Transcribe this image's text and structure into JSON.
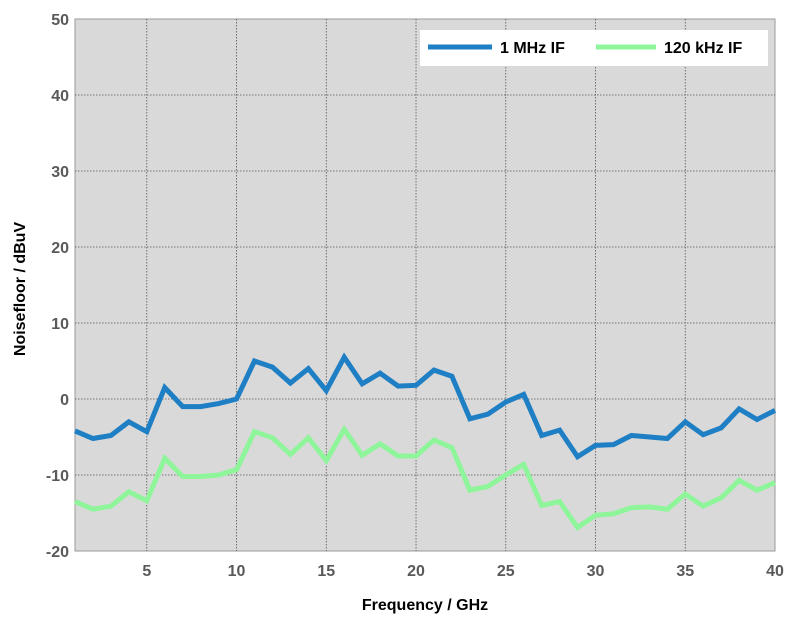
{
  "chart_data": {
    "type": "line",
    "title": "",
    "xlabel": "Frequency / GHz",
    "ylabel": "Noisefloor / dBuV",
    "xlim": [
      1,
      40
    ],
    "ylim": [
      -20,
      50
    ],
    "xticks": [
      5,
      10,
      15,
      20,
      25,
      30,
      35,
      40
    ],
    "yticks": [
      -20,
      -10,
      0,
      10,
      20,
      30,
      40,
      50
    ],
    "grid": true,
    "legend_position": "top-right",
    "background": "#d9d9d9",
    "x": [
      1,
      2,
      3,
      4,
      5,
      6,
      7,
      8,
      9,
      10,
      11,
      12,
      13,
      14,
      15,
      16,
      17,
      18,
      19,
      20,
      21,
      22,
      23,
      24,
      25,
      26,
      27,
      28,
      29,
      30,
      31,
      32,
      33,
      34,
      35,
      36,
      37,
      38,
      39,
      40
    ],
    "series": [
      {
        "name": "1 MHz IF",
        "color": "#1f7fc4",
        "values": [
          -4.2,
          -5.2,
          -4.8,
          -3,
          -4.3,
          1.5,
          -1,
          -1,
          -0.6,
          0,
          5,
          4.2,
          2.1,
          4,
          1.1,
          5.5,
          2,
          3.4,
          1.7,
          1.8,
          3.8,
          3,
          -2.6,
          -2,
          -0.4,
          0.6,
          -4.8,
          -4.1,
          -7.6,
          -6.1,
          -6,
          -4.8,
          -5,
          -5.2,
          -3,
          -4.7,
          -3.8,
          -1.3,
          -2.7,
          -1.5
        ]
      },
      {
        "name": "120 kHz IF",
        "color": "#8ff59a",
        "values": [
          -13.5,
          -14.5,
          -14.1,
          -12.2,
          -13.4,
          -7.8,
          -10.2,
          -10.2,
          -10,
          -9.3,
          -4.3,
          -5.1,
          -7.3,
          -5.1,
          -8.1,
          -4,
          -7.4,
          -5.9,
          -7.5,
          -7.5,
          -5.4,
          -6.4,
          -12,
          -11.5,
          -10,
          -8.6,
          -14,
          -13.5,
          -16.9,
          -15.3,
          -15.1,
          -14.3,
          -14.2,
          -14.5,
          -12.5,
          -14.1,
          -13,
          -10.7,
          -12,
          -11
        ]
      }
    ]
  }
}
